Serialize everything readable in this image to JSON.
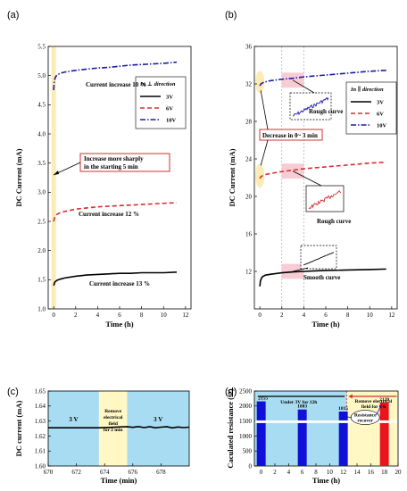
{
  "chart_data": [
    {
      "panel": "(a)",
      "type": "line",
      "xlabel": "Time (h)",
      "ylabel": "DC Current (mA)",
      "xlim": [
        -0.5,
        12.5
      ],
      "ylim": [
        1.0,
        5.5
      ],
      "xticks": [
        "0",
        "2",
        "4",
        "6",
        "8",
        "10",
        "12"
      ],
      "yticks": [
        "1.0",
        "1.5",
        "2.0",
        "2.5",
        "3.0",
        "3.5",
        "4.0",
        "4.5",
        "5.0",
        "5.5"
      ],
      "legend_title": "In ⊥ direction",
      "series": [
        {
          "name": "3V",
          "color": "#000000",
          "dash": "solid",
          "x": [
            0,
            0.1,
            0.3,
            0.6,
            1,
            2,
            3,
            4,
            5,
            6,
            7,
            8,
            9,
            10,
            11.2
          ],
          "y": [
            1.4,
            1.46,
            1.49,
            1.51,
            1.53,
            1.56,
            1.58,
            1.59,
            1.6,
            1.61,
            1.61,
            1.62,
            1.62,
            1.62,
            1.63
          ]
        },
        {
          "name": "6V",
          "color": "#d32f2f",
          "dash": "dash",
          "x": [
            0,
            0.1,
            0.3,
            0.6,
            1,
            2,
            3,
            4,
            5,
            6,
            7,
            8,
            9,
            10,
            11.2
          ],
          "y": [
            2.5,
            2.58,
            2.62,
            2.65,
            2.67,
            2.71,
            2.73,
            2.75,
            2.76,
            2.77,
            2.78,
            2.79,
            2.8,
            2.81,
            2.82
          ]
        },
        {
          "name": "10V",
          "color": "#1a1aa6",
          "dash": "dashdot",
          "x": [
            0,
            0.05,
            0.15,
            0.3,
            0.6,
            1,
            2,
            3,
            4,
            5,
            6,
            7,
            8,
            9,
            10,
            11.2
          ],
          "y": [
            4.75,
            4.9,
            4.97,
            5.01,
            5.04,
            5.06,
            5.09,
            5.11,
            5.13,
            5.14,
            5.16,
            5.18,
            5.19,
            5.2,
            5.21,
            5.23
          ]
        }
      ],
      "annotations": [
        "Current increase 10 %",
        "Increase more sharply",
        "in the starting 5 min",
        "Current increase 12 %",
        "Current increase 13 %"
      ]
    },
    {
      "panel": "(b)",
      "type": "line",
      "xlabel": "Time (h)",
      "ylabel": "DC Current (mA)",
      "xlim": [
        -0.5,
        12.5
      ],
      "ylim": [
        8,
        36
      ],
      "xticks": [
        "0",
        "2",
        "4",
        "6",
        "8",
        "10",
        "12"
      ],
      "yticks": [
        "12",
        "16",
        "20",
        "24",
        "28",
        "32",
        "36"
      ],
      "legend_title": "In ∥ direction",
      "series": [
        {
          "name": "3V",
          "color": "#000000",
          "dash": "solid",
          "x": [
            0,
            0.05,
            0.2,
            0.5,
            1,
            2,
            3,
            4,
            5,
            6,
            7,
            8,
            9,
            10,
            11.5
          ],
          "y": [
            10.4,
            11.0,
            11.4,
            11.6,
            11.7,
            11.85,
            11.95,
            12.0,
            12.05,
            12.1,
            12.12,
            12.15,
            12.17,
            12.2,
            12.25
          ]
        },
        {
          "name": "6V",
          "color": "#d32f2f",
          "dash": "dash",
          "x": [
            0,
            0.1,
            0.3,
            0.6,
            1,
            2,
            3,
            4,
            5,
            6,
            7,
            8,
            9,
            10,
            11.5
          ],
          "y": [
            21.9,
            22.1,
            22.25,
            22.35,
            22.45,
            22.65,
            22.8,
            22.95,
            23.05,
            23.15,
            23.25,
            23.35,
            23.45,
            23.55,
            23.65
          ]
        },
        {
          "name": "10V",
          "color": "#1a1aa6",
          "dash": "dashdot",
          "x": [
            0,
            0.1,
            0.3,
            0.6,
            1,
            2,
            3,
            4,
            5,
            6,
            7,
            8,
            9,
            10,
            11.5
          ],
          "y": [
            31.8,
            32.0,
            32.15,
            32.25,
            32.35,
            32.5,
            32.6,
            32.75,
            32.85,
            32.95,
            33.05,
            33.15,
            33.25,
            33.35,
            33.45
          ]
        }
      ],
      "annotations": [
        "Rough curve",
        "Decrease in 0~ 3 min",
        "Rough curve",
        "Smooth curve"
      ]
    },
    {
      "panel": "(c)",
      "type": "line",
      "xlabel": "Time (min)",
      "ylabel": "DC current (mA)",
      "xlim": [
        670,
        680
      ],
      "ylim": [
        1.6,
        1.65
      ],
      "xticks": [
        "670",
        "672",
        "674",
        "676",
        "678"
      ],
      "yticks": [
        "1.60",
        "1.61",
        "1.62",
        "1.63",
        "1.64",
        "1.65"
      ],
      "regions": [
        {
          "label": "3 V",
          "x": [
            670,
            673.6
          ]
        },
        {
          "label": "Remove electrical field for 2 min",
          "x": [
            673.6,
            675.6
          ]
        },
        {
          "label": "3 V",
          "x": [
            675.6,
            680
          ]
        }
      ],
      "series": [
        {
          "name": "",
          "color": "#000000",
          "x": [
            670,
            671,
            672,
            673,
            673.6,
            675.6,
            676,
            676.4,
            676.8,
            677.2,
            677.6,
            678,
            678.4,
            678.8,
            679.2,
            679.6,
            680
          ],
          "y": [
            1.6255,
            1.6255,
            1.6255,
            1.6255,
            1.6255,
            1.6262,
            1.6258,
            1.6263,
            1.6256,
            1.6262,
            1.6255,
            1.6259,
            1.6262,
            1.6254,
            1.626,
            1.6256,
            1.6259
          ]
        }
      ]
    },
    {
      "panel": "(d)",
      "type": "bar",
      "xlabel": "Time (h)",
      "ylabel": "Caculated resistance (Ω)",
      "xlim": [
        -1,
        20
      ],
      "ylim": [
        0,
        2500
      ],
      "xticks": [
        "0",
        "2",
        "4",
        "6",
        "8",
        "10",
        "12",
        "14",
        "16",
        "18",
        "20"
      ],
      "yticks": [
        "0",
        "500",
        "1000",
        "1500",
        "2000",
        "2500"
      ],
      "annotations": [
        "Under 3V for 12h",
        "Remove electrical field for 6 h",
        "Resistance recover"
      ],
      "bars": [
        {
          "x": 0,
          "value": 2155,
          "label": "2155",
          "color": "#1010d8"
        },
        {
          "x": 6,
          "value": 1883,
          "label": "1883",
          "color": "#1010d8"
        },
        {
          "x": 12,
          "value": 1815,
          "label": "1815",
          "color": "#1010d8"
        },
        {
          "x": 18,
          "value": 2120,
          "label": "2120",
          "color": "#e8141e"
        }
      ]
    }
  ]
}
